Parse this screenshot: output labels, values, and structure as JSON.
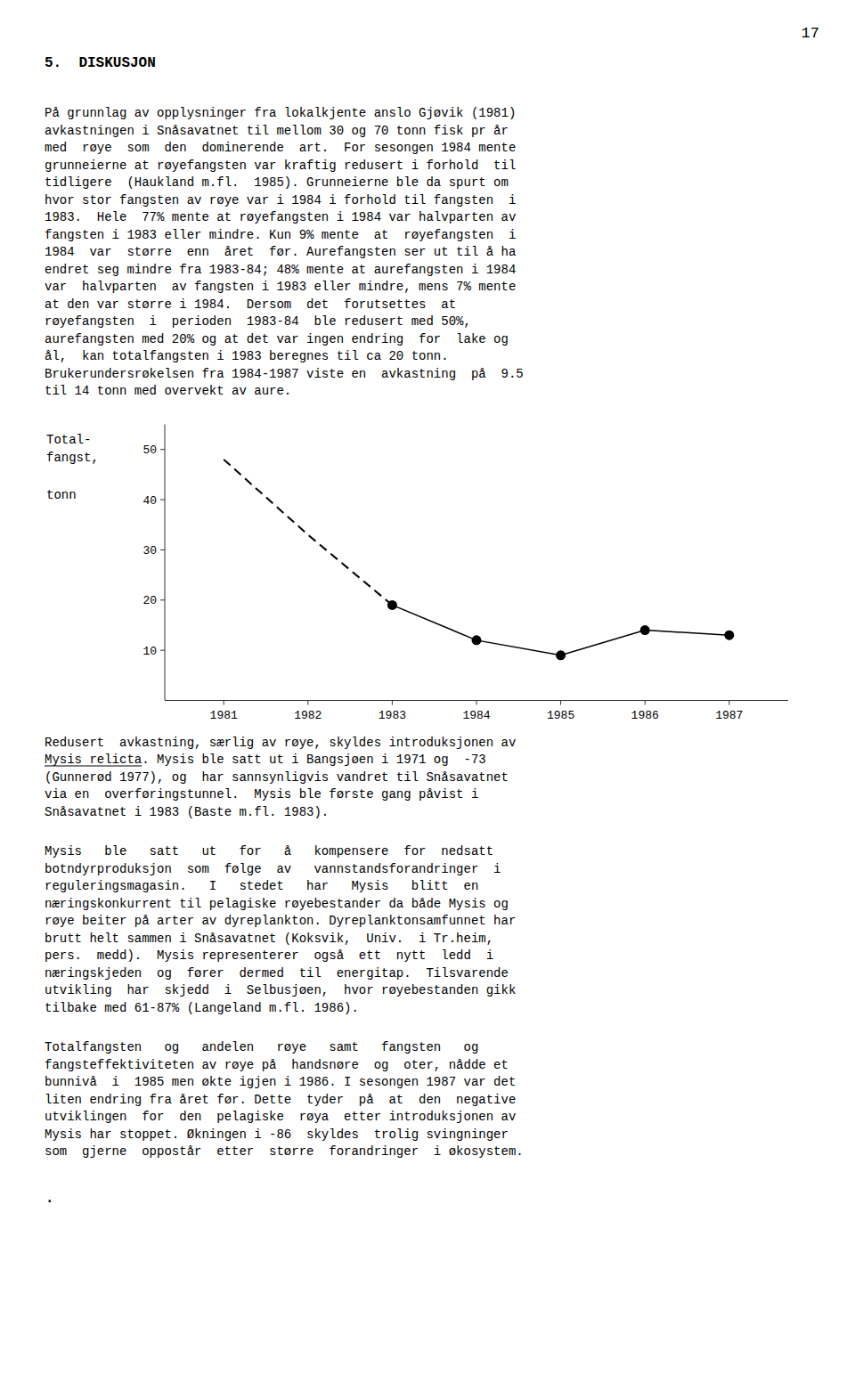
{
  "page_number": "17",
  "section_title": "5.  DISKUSJON",
  "paragraphs": [
    {
      "lines": [
        "På grunnlag av opplysninger fra lokalkjente anslo Gjøvik (1981)",
        "avkastningen i Snåsavatnet til mellom 30 og 70 tonn fisk pr år",
        "med  røye  som  den  dominerende  art.  For sesongen 1984 mente",
        "grunneierne at røyefangsten var kraftig redusert i forhold  til",
        "tidligere  (Haukland m.fl.  1985). Grunneierne ble da spurt om",
        "hvor stor fangsten av røye var i 1984 i forhold til fangsten  i",
        "1983.  Hele  77% mente at røyefangsten i 1984 var halvparten av",
        "fangsten i 1983 eller mindre. Kun 9% mente  at  røyefangsten  i",
        "1984  var  større  enn  året  før. Aurefangsten ser ut til å ha",
        "endret seg mindre fra 1983-84; 48% mente at aurefangsten i 1984",
        "var  halvparten  av fangsten i 1983 eller mindre, mens 7% mente",
        "at den var større i 1984.  Dersom  det  forutsettes  at",
        "røyefangsten  i  perioden  1983-84  ble redusert med 50%,",
        "aurefangsten med 20% og at det var ingen endring  for  lake og",
        "ål,  kan totalfangsten i 1983 beregnes til ca 20 tonn.",
        "Brukerundersrøkelsen fra 1984-1987 viste en  avkastning  på  9.5",
        "til 14 tonn med overvekt av aure."
      ]
    },
    {
      "lines": [
        "Redusert  avkastning, særlig av røye, skyldes introduksjonen av",
        "Mysis relicta. Mysis ble satt ut i Bangsjøen i 1971 og  -73",
        "(Gunnerød 1977), og  har sannsynligvis vandret til Snåsavatnet",
        "via en  overføringstunnel.  Mysis ble første gang påvist i",
        "Snåsavatnet i 1983 (Baste m.fl. 1983)."
      ],
      "underline": {
        "line": 1,
        "text": "Mysis relicta"
      }
    },
    {
      "lines": [
        "Mysis   ble   satt   ut   for   å   kompensere  for  nedsatt",
        "botndyrproduksjon  som  følge  av   vannstandsforandringer  i",
        "reguleringsmagasin.   I   stedet   har   Mysis   blitt  en",
        "næringskonkurrent til pelagiske røyebestander da både Mysis og",
        "røye beiter på arter av dyreplankton. Dyreplanktonsamfunnet har",
        "brutt helt sammen i Snåsavatnet (Koksvik,  Univ.  i Tr.heim,",
        "pers.  medd).  Mysis representerer  også  ett  nytt  ledd  i",
        "næringskjeden  og  fører  dermed  til  energitap.  Tilsvarende",
        "utvikling  har  skjedd  i  Selbusjøen,  hvor røyebestanden gikk",
        "tilbake med 61-87% (Langeland m.fl. 1986)."
      ]
    },
    {
      "lines": [
        "Totalfangsten   og   andelen   røye   samt   fangsten   og",
        "fangsteffektiviteten av røye på  handsnøre  og  oter, nådde et",
        "bunnivå  i  1985 men økte igjen i 1986. I sesongen 1987 var det",
        "liten endring fra året før. Dette  tyder  på  at  den  negative",
        "utviklingen  for  den  pelagiske  røya  etter introduksjonen av",
        "Mysis har stoppet. Økningen i -86  skyldes  trolig svingninger",
        "som  gjerne  oppostår  etter  større  forandringer  i økosystem."
      ]
    }
  ],
  "end_mark": ".",
  "chart_data": {
    "type": "line",
    "ylabel": [
      "Total-",
      "fangst,",
      "tonn"
    ],
    "x": [
      1981,
      1982,
      1983,
      1984,
      1985,
      1986,
      1987
    ],
    "series": [
      {
        "color": "#000000",
        "line_style": "dashed",
        "values": [
          48,
          33,
          19,
          null,
          null,
          null,
          null
        ]
      },
      {
        "color": "#000000",
        "line_style": "solid",
        "marker": "circle",
        "values": [
          null,
          null,
          19,
          12,
          9,
          14,
          13
        ]
      }
    ],
    "xlim": [
      1980.3,
      1987.7
    ],
    "xticks": [
      1981,
      1982,
      1983,
      1984,
      1985,
      1986,
      1987
    ],
    "ylim": [
      0,
      55
    ],
    "yticks": [
      10,
      20,
      30,
      40,
      50
    ],
    "grid": false
  }
}
